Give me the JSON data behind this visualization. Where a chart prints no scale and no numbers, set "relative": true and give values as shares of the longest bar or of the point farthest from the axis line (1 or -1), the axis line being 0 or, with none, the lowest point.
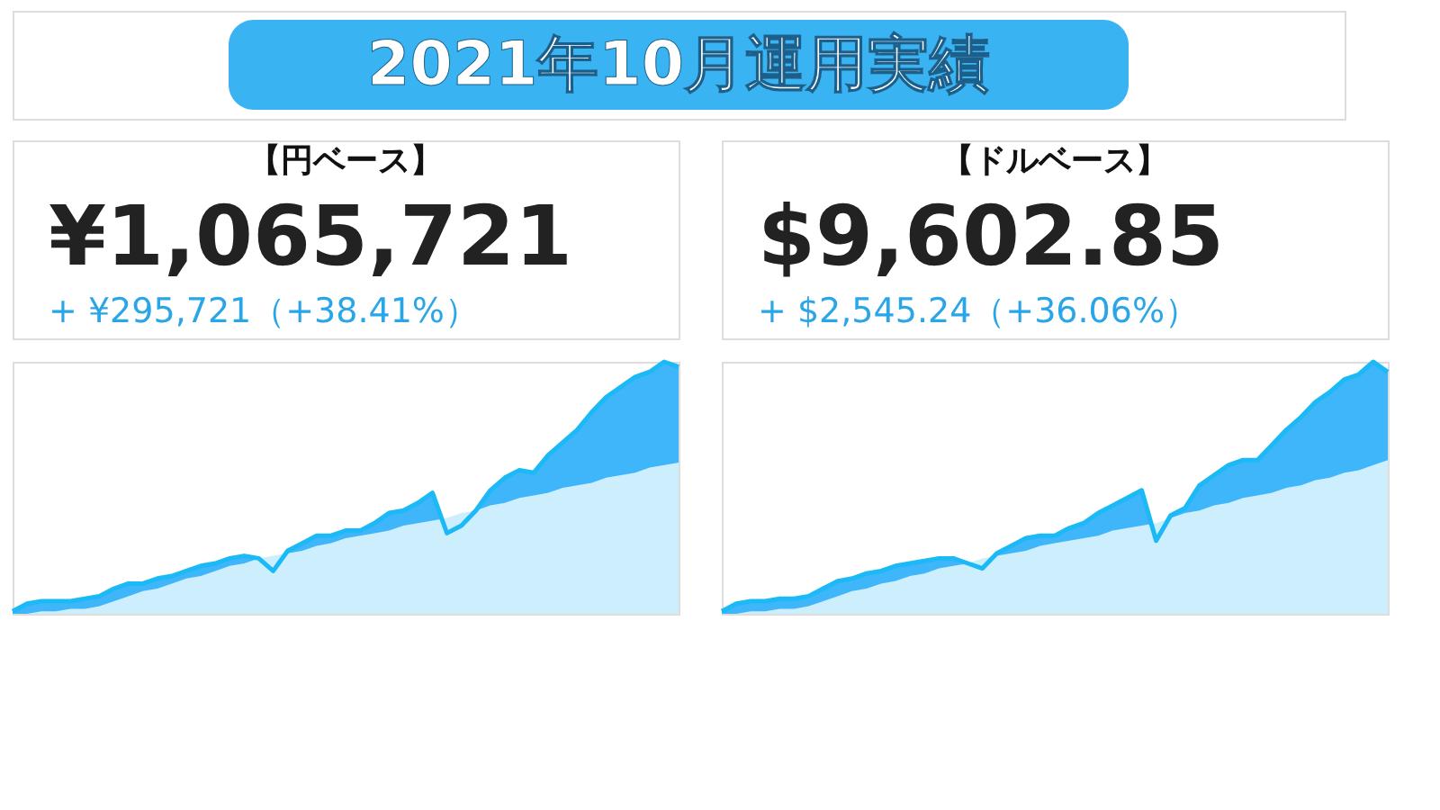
{
  "chart_data": [
    {
      "type": "other",
      "title": "2021年10月運用実績"
    },
    {
      "type": "area",
      "relative": true,
      "title": "【円ベース】",
      "subtitle": "¥1,065,721",
      "annotations": [
        "+ ¥295,721（+38.41%）"
      ],
      "categories": [
        null,
        null,
        null,
        null,
        null,
        null,
        null,
        null,
        null,
        null,
        null,
        null,
        null,
        null,
        null,
        null,
        null,
        null,
        null,
        null,
        null,
        null,
        null,
        null,
        null,
        null,
        null,
        null,
        null,
        null,
        null,
        null,
        null,
        null,
        null,
        null,
        null,
        null,
        null,
        null,
        null,
        null,
        null,
        null,
        null,
        null,
        null
      ],
      "series": [
        {
          "color": "#3fb5fa",
          "values": [
            0.01,
            0.04,
            0.05,
            0.05,
            0.05,
            0.06,
            0.07,
            0.1,
            0.12,
            0.12,
            0.14,
            0.15,
            0.17,
            0.19,
            0.2,
            0.22,
            0.23,
            0.22,
            0.17,
            0.25,
            0.28,
            0.31,
            0.31,
            0.33,
            0.33,
            0.36,
            0.4,
            0.41,
            0.44,
            0.48,
            0.32,
            0.35,
            0.41,
            0.49,
            0.54,
            0.57,
            0.56,
            0.63,
            0.68,
            0.73,
            0.8,
            0.86,
            0.9,
            0.94,
            0.96,
            1.0,
            0.98
          ]
        },
        {
          "color": "#cdeefd",
          "values": [
            0,
            0,
            0.01,
            0.01,
            0.02,
            0.02,
            0.03,
            0.05,
            0.07,
            0.09,
            0.1,
            0.12,
            0.14,
            0.15,
            0.17,
            0.19,
            0.2,
            0.22,
            0.23,
            0.24,
            0.25,
            0.27,
            0.28,
            0.3,
            0.31,
            0.32,
            0.33,
            0.35,
            0.36,
            0.37,
            0.38,
            0.4,
            0.41,
            0.43,
            0.44,
            0.46,
            0.47,
            0.48,
            0.5,
            0.51,
            0.52,
            0.54,
            0.55,
            0.56,
            0.58,
            0.59,
            0.6
          ]
        }
      ]
    },
    {
      "type": "area",
      "relative": true,
      "title": "【ドルベース】",
      "subtitle": "$9,602.85",
      "annotations": [
        "+ $2,545.24（+36.06%）"
      ],
      "categories": [
        null,
        null,
        null,
        null,
        null,
        null,
        null,
        null,
        null,
        null,
        null,
        null,
        null,
        null,
        null,
        null,
        null,
        null,
        null,
        null,
        null,
        null,
        null,
        null,
        null,
        null,
        null,
        null,
        null,
        null,
        null,
        null,
        null,
        null,
        null,
        null,
        null,
        null,
        null,
        null,
        null,
        null,
        null,
        null,
        null,
        null,
        null
      ],
      "series": [
        {
          "color": "#3fb5fa",
          "values": [
            0.01,
            0.04,
            0.05,
            0.05,
            0.06,
            0.06,
            0.07,
            0.1,
            0.13,
            0.14,
            0.16,
            0.17,
            0.19,
            0.2,
            0.21,
            0.22,
            0.22,
            0.2,
            0.18,
            0.24,
            0.27,
            0.3,
            0.31,
            0.31,
            0.34,
            0.36,
            0.4,
            0.43,
            0.46,
            0.49,
            0.29,
            0.39,
            0.42,
            0.51,
            0.55,
            0.59,
            0.61,
            0.61,
            0.67,
            0.73,
            0.78,
            0.84,
            0.88,
            0.93,
            0.95,
            1.0,
            0.96
          ]
        },
        {
          "color": "#cdeefd",
          "values": [
            0,
            0,
            0.01,
            0.01,
            0.02,
            0.02,
            0.03,
            0.05,
            0.07,
            0.09,
            0.1,
            0.12,
            0.13,
            0.15,
            0.16,
            0.18,
            0.19,
            0.2,
            0.22,
            0.23,
            0.24,
            0.25,
            0.27,
            0.28,
            0.29,
            0.3,
            0.31,
            0.33,
            0.34,
            0.35,
            0.36,
            0.38,
            0.4,
            0.41,
            0.43,
            0.44,
            0.46,
            0.47,
            0.48,
            0.5,
            0.51,
            0.53,
            0.54,
            0.56,
            0.57,
            0.59,
            0.61
          ]
        }
      ]
    }
  ]
}
